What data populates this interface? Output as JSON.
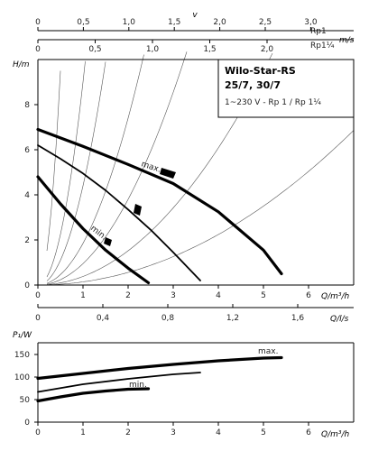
{
  "chart_data": [
    {
      "type": "line",
      "name_role": "velocity scales",
      "v_label": "v",
      "unit_label": "m/s",
      "scales": [
        {
          "label": "Rp1",
          "ticks": [
            "0",
            "0,5",
            "1,0",
            "1,5",
            "2,0",
            "2,5",
            "3,0"
          ],
          "values": [
            0,
            0.5,
            1,
            1.5,
            2,
            2.5,
            3
          ]
        },
        {
          "label": "Rp1¼",
          "ticks": [
            "0",
            "0,5",
            "1,0",
            "1,5",
            "2,0"
          ],
          "values": [
            0,
            0.5,
            1,
            1.5,
            2
          ]
        }
      ]
    },
    {
      "type": "line",
      "xlabel": "Q/m³/h",
      "ylabel": "H/m",
      "xlim": [
        0,
        7
      ],
      "ylim": [
        0,
        10
      ],
      "x_ticks": [
        "0",
        "1",
        "2",
        "3",
        "4",
        "5",
        "6"
      ],
      "y_ticks": [
        "0",
        "2",
        "4",
        "6",
        "8"
      ],
      "legend_box": {
        "line1": "Wilo-Star-RS",
        "line2": "25/7, 30/7",
        "line3": "1~230 V - Rp 1 / Rp 1¼"
      },
      "series": [
        {
          "name": "max.",
          "x": [
            0,
            1,
            2,
            3,
            4,
            5,
            5.4
          ],
          "y": [
            6.9,
            6.15,
            5.35,
            4.5,
            3.25,
            1.55,
            0.5
          ]
        },
        {
          "x": [
            0,
            0.5,
            1,
            1.5,
            2,
            2.5,
            3,
            3.6
          ],
          "y": [
            6.2,
            5.6,
            4.95,
            4.2,
            3.35,
            2.45,
            1.45,
            0.2
          ]
        },
        {
          "name": "min.",
          "x": [
            0,
            0.5,
            1,
            1.5,
            2,
            2.45
          ],
          "y": [
            4.8,
            3.6,
            2.5,
            1.55,
            0.75,
            0.1
          ]
        }
      ],
      "system_curves_k": [
        38,
        9,
        4.4,
        1.85,
        0.95,
        0.38,
        0.14
      ]
    },
    {
      "type": "line",
      "xlabel": "Q/l/s",
      "x_ticks": [
        "0",
        "0,4",
        "0,8",
        "1,2",
        "1,6"
      ],
      "x_values": [
        0,
        0.4,
        0.8,
        1.2,
        1.6
      ],
      "xlim": [
        0,
        1.944
      ]
    },
    {
      "type": "line",
      "xlabel": "Q/m³/h",
      "ylabel": "P₁/W",
      "xlim": [
        0,
        7
      ],
      "ylim": [
        0,
        160
      ],
      "x_ticks": [
        "0",
        "1",
        "2",
        "3",
        "4",
        "5",
        "6"
      ],
      "y_ticks": [
        "0",
        "50",
        "100",
        "150"
      ],
      "series": [
        {
          "name": "max.",
          "x": [
            0,
            1,
            2,
            3,
            4,
            5,
            5.4
          ],
          "y": [
            97,
            108,
            119,
            128,
            136,
            142,
            143
          ]
        },
        {
          "x": [
            0,
            1,
            2,
            3,
            3.6
          ],
          "y": [
            67,
            84,
            96,
            106,
            110
          ]
        },
        {
          "name": "min.",
          "x": [
            0,
            0.5,
            1,
            1.5,
            2,
            2.45
          ],
          "y": [
            47,
            56,
            64,
            69,
            73,
            74
          ]
        }
      ]
    }
  ]
}
